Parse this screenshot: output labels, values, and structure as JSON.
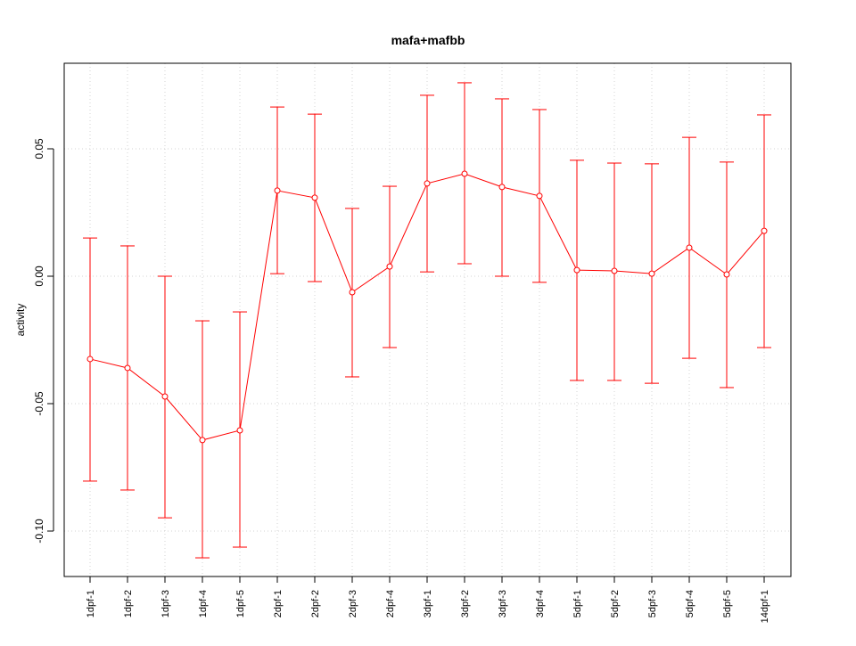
{
  "chart_data": {
    "type": "line",
    "title": "mafa+mafbb",
    "xlabel": "",
    "ylabel": "activity",
    "ylim": [
      -0.118,
      0.083
    ],
    "yticks": [
      -0.1,
      -0.05,
      0.0,
      0.05
    ],
    "ytick_labels": [
      "-0.10",
      "-0.05",
      "0.00",
      "0.05"
    ],
    "grid": true,
    "series_color": "#ff0000",
    "categories": [
      "1dpf-1",
      "1dpf-2",
      "1dpf-3",
      "1dpf-4",
      "1dpf-5",
      "2dpf-1",
      "2dpf-2",
      "2dpf-3",
      "2dpf-4",
      "3dpf-1",
      "3dpf-2",
      "3dpf-3",
      "3dpf-4",
      "5dpf-1",
      "5dpf-2",
      "5dpf-3",
      "5dpf-4",
      "5dpf-5",
      "14dpf-1"
    ],
    "series": [
      {
        "name": "activity",
        "values": [
          -0.0325,
          -0.036,
          -0.0472,
          -0.0643,
          -0.0605,
          0.0336,
          0.0308,
          -0.0063,
          0.0038,
          0.0364,
          0.0402,
          0.035,
          0.0315,
          0.0024,
          0.0021,
          0.001,
          0.0112,
          0.0007,
          0.0178
        ],
        "upper": [
          0.015,
          0.0119,
          0.0,
          -0.0175,
          -0.014,
          0.0664,
          0.0636,
          0.0266,
          0.0353,
          0.071,
          0.0759,
          0.0696,
          0.0654,
          0.0455,
          0.0444,
          0.0441,
          0.0545,
          0.0448,
          0.0633
        ],
        "lower": [
          -0.0804,
          -0.0839,
          -0.0948,
          -0.1105,
          -0.1063,
          0.001,
          -0.0021,
          -0.0395,
          -0.028,
          0.0017,
          0.0049,
          0.0,
          -0.0024,
          -0.0409,
          -0.0409,
          -0.042,
          -0.0322,
          -0.0437,
          -0.028
        ]
      }
    ]
  }
}
